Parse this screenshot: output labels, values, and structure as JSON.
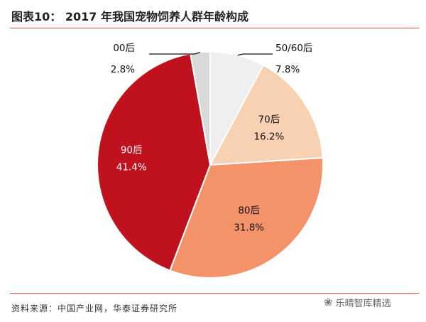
{
  "header": {
    "title": "图表10：  2017 年我国宠物饲养人群年龄构成"
  },
  "chart_data": {
    "type": "pie",
    "title": "图表10：  2017 年我国宠物饲养人群年龄构成",
    "slices": [
      {
        "label": "50/60后",
        "value_text": "7.8%",
        "value": 7.8,
        "color": "#efefef"
      },
      {
        "label": "70后",
        "value_text": "16.2%",
        "value": 16.2,
        "color": "#f8d1b3"
      },
      {
        "label": "80后",
        "value_text": "31.8%",
        "value": 31.8,
        "color": "#f4936a"
      },
      {
        "label": "90后",
        "value_text": "41.4%",
        "value": 41.4,
        "color": "#c0111f"
      },
      {
        "label": "00后",
        "value_text": "2.8%",
        "value": 2.8,
        "color": "#d9d9d9"
      }
    ]
  },
  "footer": {
    "source": "资料来源：中国产业网，华泰证券研究所",
    "watermark": "乐晴智库精选"
  }
}
